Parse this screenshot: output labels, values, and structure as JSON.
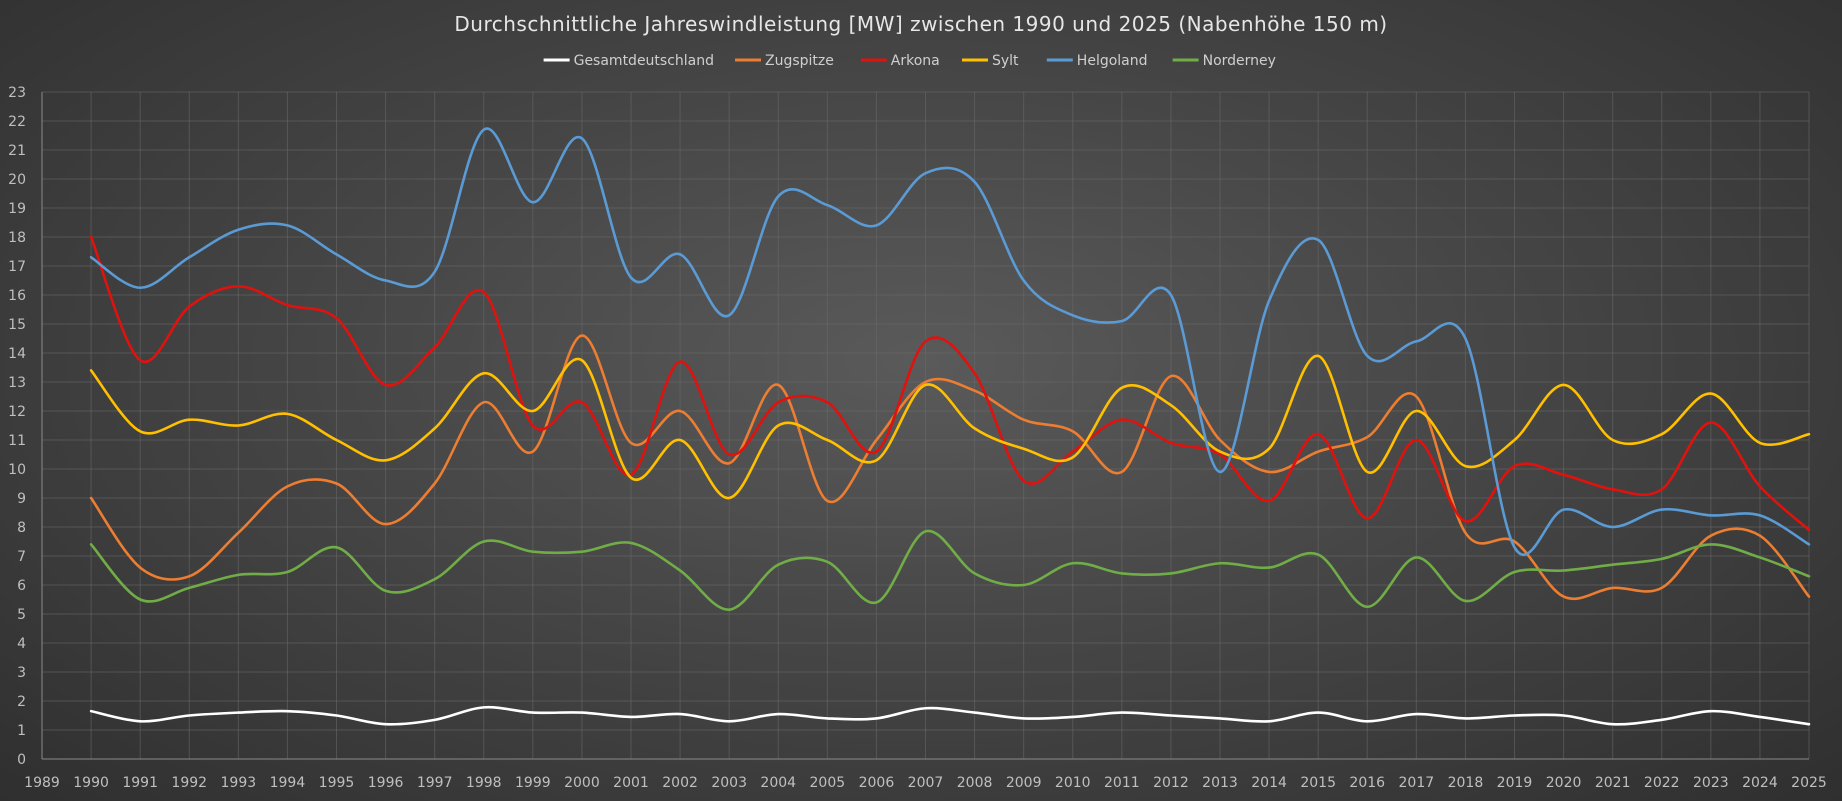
{
  "chart_data": {
    "type": "line",
    "title": "Durchschnittliche Jahreswindleistung [MW] zwischen 1990 und 2025 (Nabenhöhe 150 m)",
    "xlabel": "",
    "ylabel": "",
    "xlim": [
      1989,
      2025
    ],
    "ylim": [
      0,
      23
    ],
    "x_ticks": [
      1989,
      1990,
      1991,
      1992,
      1993,
      1994,
      1995,
      1996,
      1997,
      1998,
      1999,
      2000,
      2001,
      2002,
      2003,
      2004,
      2005,
      2006,
      2007,
      2008,
      2009,
      2010,
      2011,
      2012,
      2013,
      2014,
      2015,
      2016,
      2017,
      2018,
      2019,
      2020,
      2021,
      2022,
      2023,
      2024,
      2025
    ],
    "y_ticks": [
      0,
      1,
      2,
      3,
      4,
      5,
      6,
      7,
      8,
      9,
      10,
      11,
      12,
      13,
      14,
      15,
      16,
      17,
      18,
      19,
      20,
      21,
      22,
      23
    ],
    "grid": true,
    "legend_position": "top-center",
    "x": [
      1990,
      1991,
      1992,
      1993,
      1994,
      1995,
      1996,
      1997,
      1998,
      1999,
      2000,
      2001,
      2002,
      2003,
      2004,
      2005,
      2006,
      2007,
      2008,
      2009,
      2010,
      2011,
      2012,
      2013,
      2014,
      2015,
      2016,
      2017,
      2018,
      2019,
      2020,
      2021,
      2022,
      2023,
      2024,
      2025
    ],
    "series": [
      {
        "name": "Gesamtdeutschland",
        "color": "#ffffff",
        "values": [
          1.65,
          1.3,
          1.5,
          1.6,
          1.65,
          1.5,
          1.2,
          1.35,
          1.78,
          1.6,
          1.6,
          1.45,
          1.55,
          1.3,
          1.55,
          1.4,
          1.4,
          1.75,
          1.6,
          1.4,
          1.45,
          1.6,
          1.5,
          1.4,
          1.3,
          1.6,
          1.3,
          1.55,
          1.4,
          1.5,
          1.5,
          1.2,
          1.35,
          1.65,
          1.45,
          1.2
        ]
      },
      {
        "name": "Zugspitze",
        "color": "#ed7d31",
        "values": [
          9.0,
          6.6,
          6.3,
          7.8,
          9.4,
          9.5,
          8.1,
          9.5,
          12.3,
          10.6,
          14.6,
          10.9,
          12.0,
          10.2,
          12.9,
          8.9,
          11.0,
          13.0,
          12.7,
          11.7,
          11.3,
          9.9,
          13.2,
          11.0,
          9.9,
          10.6,
          11.1,
          12.5,
          7.8,
          7.5,
          5.6,
          5.9,
          5.9,
          7.7,
          7.7,
          5.6
        ]
      },
      {
        "name": "Arkona",
        "color": "#e0120e",
        "values": [
          18.0,
          13.75,
          15.6,
          16.3,
          15.65,
          15.2,
          12.9,
          14.2,
          16.1,
          11.5,
          12.3,
          9.8,
          13.7,
          10.5,
          12.3,
          12.3,
          10.6,
          14.4,
          13.3,
          9.6,
          10.6,
          11.7,
          10.9,
          10.5,
          8.9,
          11.2,
          8.3,
          11.0,
          8.2,
          10.1,
          9.8,
          9.3,
          9.3,
          11.6,
          9.4,
          7.9
        ]
      },
      {
        "name": "Sylt",
        "color": "#ffc000",
        "values": [
          13.4,
          11.3,
          11.7,
          11.5,
          11.9,
          11.0,
          10.3,
          11.4,
          13.3,
          12.0,
          13.75,
          9.7,
          11.0,
          9.0,
          11.5,
          11.0,
          10.3,
          12.9,
          11.4,
          10.7,
          10.4,
          12.8,
          12.2,
          10.6,
          10.7,
          13.9,
          9.9,
          12.0,
          10.1,
          11.0,
          12.9,
          11.0,
          11.2,
          12.6,
          10.9,
          11.2
        ]
      },
      {
        "name": "Helgoland",
        "color": "#5b9bd5",
        "values": [
          17.3,
          16.25,
          17.3,
          18.25,
          18.4,
          17.4,
          16.5,
          16.8,
          21.7,
          19.2,
          21.4,
          16.6,
          17.4,
          15.3,
          19.4,
          19.1,
          18.4,
          20.2,
          19.9,
          16.5,
          15.3,
          15.1,
          16.0,
          9.9,
          15.8,
          17.9,
          13.9,
          14.4,
          14.5,
          7.3,
          8.6,
          8.0,
          8.6,
          8.4,
          8.4,
          7.4
        ]
      },
      {
        "name": "Norderney",
        "color": "#70ad47",
        "values": [
          7.4,
          5.5,
          5.9,
          6.35,
          6.45,
          7.3,
          5.8,
          6.2,
          7.5,
          7.15,
          7.15,
          7.45,
          6.5,
          5.15,
          6.7,
          6.8,
          5.4,
          7.85,
          6.4,
          6.0,
          6.75,
          6.4,
          6.4,
          6.75,
          6.6,
          7.05,
          5.25,
          6.95,
          5.45,
          6.45,
          6.5,
          6.7,
          6.9,
          7.4,
          6.95,
          6.3
        ]
      }
    ]
  }
}
